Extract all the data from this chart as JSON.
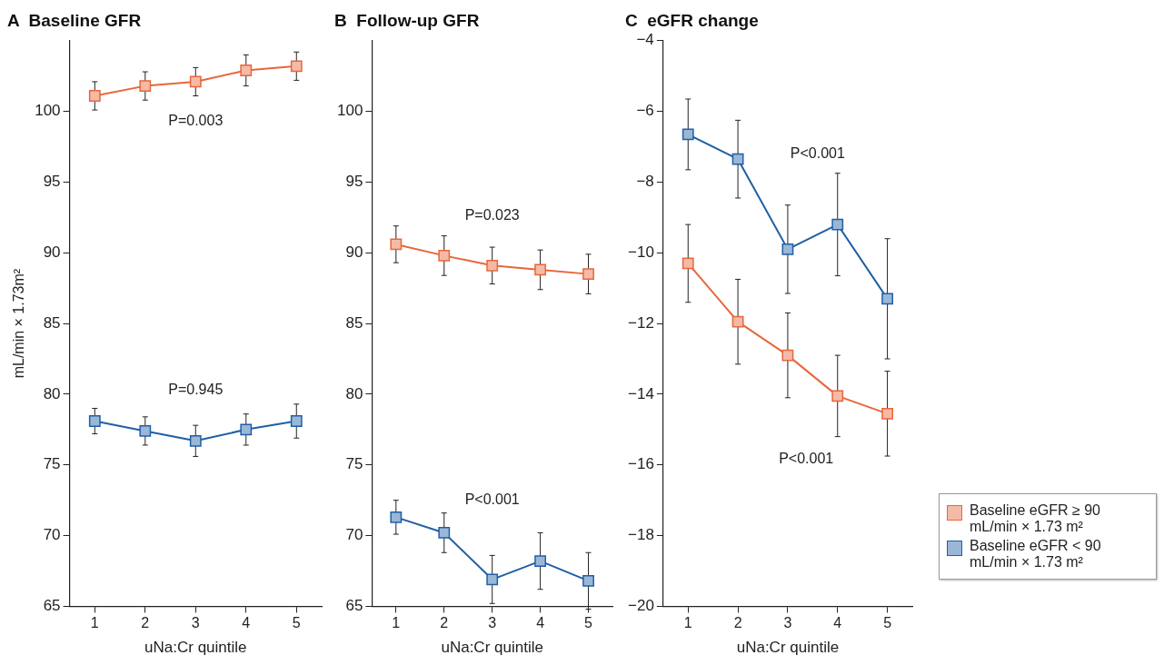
{
  "chart_data": [
    {
      "type": "line",
      "title": "A  Baseline GFR",
      "xlabel": "uNa:Cr quintile",
      "ylabel": "mL/min × 1.73m²",
      "categories": [
        "1",
        "2",
        "3",
        "4",
        "5"
      ],
      "series": [
        {
          "color": "#e8663a",
          "values": [
            101.1,
            101.8,
            102.1,
            102.9,
            103.2
          ],
          "errors": [
            1.0,
            1.0,
            1.0,
            1.1,
            1.0
          ]
        },
        {
          "color": "#1f5fa6",
          "values": [
            78.1,
            77.4,
            76.7,
            77.5,
            78.1
          ],
          "errors": [
            0.9,
            1.0,
            1.1,
            1.1,
            1.2
          ]
        }
      ],
      "ylim": [
        65,
        105
      ],
      "yticks": [
        65,
        70,
        75,
        80,
        85,
        90,
        95,
        100
      ],
      "grid": false,
      "legend": false,
      "marker": "square",
      "line_style": "solid",
      "annotations": [
        "P=0.003",
        "P=0.945"
      ]
    },
    {
      "type": "line",
      "title": "B  Follow-up GFR",
      "xlabel": "uNa:Cr quintile",
      "categories": [
        "1",
        "2",
        "3",
        "4",
        "5"
      ],
      "series": [
        {
          "color": "#e8663a",
          "values": [
            90.6,
            89.8,
            89.1,
            88.8,
            88.5
          ],
          "errors": [
            1.3,
            1.4,
            1.3,
            1.4,
            1.4
          ]
        },
        {
          "color": "#1f5fa6",
          "values": [
            71.3,
            70.2,
            66.9,
            68.2,
            66.8
          ],
          "errors": [
            1.2,
            1.4,
            1.7,
            2.0,
            2.0
          ]
        }
      ],
      "ylim": [
        65,
        105
      ],
      "yticks": [
        65,
        70,
        75,
        80,
        85,
        90,
        95,
        100
      ],
      "grid": false,
      "legend": false,
      "marker": "square",
      "line_style": "solid",
      "annotations": [
        "P=0.023",
        "P<0.001"
      ]
    },
    {
      "type": "line",
      "title": "C  eGFR change",
      "xlabel": "uNa:Cr quintile",
      "categories": [
        "1",
        "2",
        "3",
        "4",
        "5"
      ],
      "series": [
        {
          "name": "Baseline eGFR ≥ 90 mL/min × 1.73 m²",
          "color": "#e8663a",
          "values": [
            -10.3,
            -11.95,
            -12.9,
            -14.05,
            -14.55
          ],
          "errors": [
            1.1,
            1.2,
            1.2,
            1.15,
            1.2
          ]
        },
        {
          "name": "Baseline eGFR < 90 mL/min × 1.73 m²",
          "color": "#1f5fa6",
          "values": [
            -6.65,
            -7.35,
            -9.9,
            -9.2,
            -11.3
          ],
          "errors": [
            1.0,
            1.1,
            1.25,
            1.45,
            1.7
          ]
        }
      ],
      "ylim": [
        -20,
        -4
      ],
      "yticks": [
        -20,
        -18,
        -16,
        -14,
        -12,
        -10,
        -8,
        -6,
        -4
      ],
      "grid": false,
      "legend": "bottom right",
      "marker": "square",
      "line_style": "solid",
      "annotations": [
        "P<0.001",
        "P<0.001"
      ]
    }
  ]
}
